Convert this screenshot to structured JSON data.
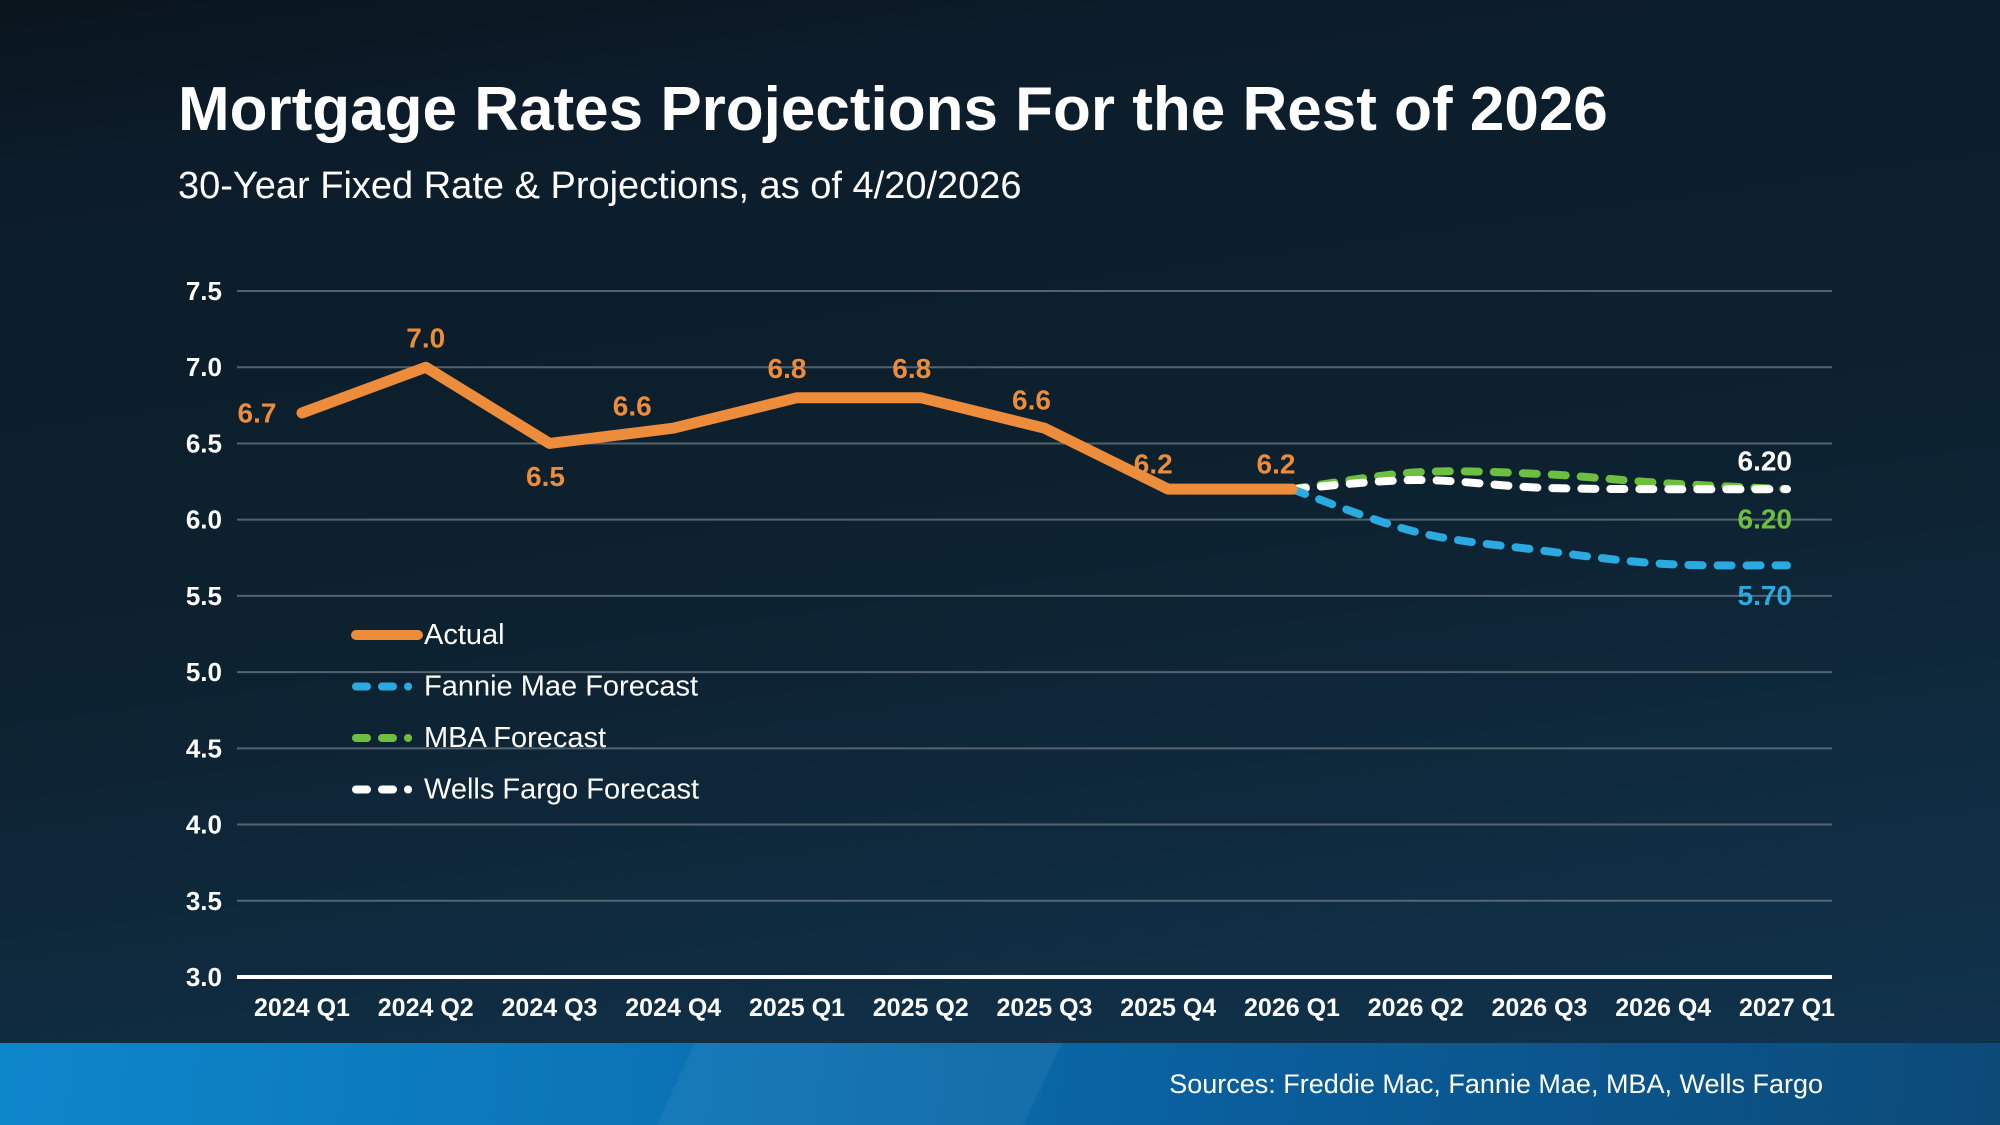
{
  "title": "Mortgage Rates Projections For the Rest of 2026",
  "subtitle": "30-Year Fixed Rate & Projections, as of 4/20/2026",
  "footer": {
    "sources_label": "Sources: Freddie Mac, Fannie Mae, MBA, Wells Fargo"
  },
  "colors": {
    "background_top": "#0a141d",
    "background_bottom": "#123351",
    "footer_bar_left": "#0e86cb",
    "footer_bar_right": "#0c4a78",
    "gridline": "#66737e",
    "axis_line": "#ffffff",
    "actual": "#ed8c3b",
    "fannie_mae": "#2ba9e1",
    "mba": "#6cbf3f",
    "wells_fargo": "#ffffff",
    "text": "#ffffff"
  },
  "chart_data": {
    "type": "line",
    "title": "Mortgage Rates Projections For the Rest of 2026",
    "subtitle": "30-Year Fixed Rate & Projections, as of 4/20/2026",
    "categories": [
      "2024 Q1",
      "2024 Q2",
      "2024 Q3",
      "2024 Q4",
      "2025 Q1",
      "2025 Q2",
      "2025 Q3",
      "2025 Q4",
      "2026 Q1",
      "2026 Q2",
      "2026 Q3",
      "2026 Q4",
      "2027 Q1"
    ],
    "xlabel": "",
    "ylabel": "",
    "ylim": [
      3.0,
      7.5
    ],
    "y_axis": {
      "tick_labels": [
        "7.5",
        "7.0",
        "6.5",
        "6.0",
        "5.5",
        "5.0",
        "4.5",
        "4.0",
        "3.5",
        "3.0"
      ],
      "step": 0.5
    },
    "grid": true,
    "legend_position": "middle-left",
    "series": [
      {
        "id": "actual",
        "name": "Actual",
        "style": "solid",
        "color": "#ed8c3b",
        "values": [
          6.7,
          7.0,
          6.5,
          6.6,
          6.8,
          6.8,
          6.6,
          6.2,
          6.2,
          null,
          null,
          null,
          null
        ],
        "point_labels": [
          "6.7",
          "7.0",
          "6.5",
          "6.6",
          "6.8",
          "6.8",
          "6.6",
          "6.2",
          "6.2"
        ]
      },
      {
        "id": "fannie-mae-forecast",
        "name": "Fannie Mae Forecast",
        "style": "dashed",
        "color": "#2ba9e1",
        "values": [
          null,
          null,
          null,
          null,
          null,
          null,
          null,
          null,
          6.2,
          5.92,
          5.8,
          5.71,
          5.7
        ],
        "end_label": "5.70",
        "end_label_side": "below"
      },
      {
        "id": "mba-forecast",
        "name": "MBA Forecast",
        "style": "dashed",
        "color": "#6cbf3f",
        "values": [
          null,
          null,
          null,
          null,
          null,
          null,
          null,
          null,
          6.2,
          6.31,
          6.3,
          6.24,
          6.2
        ],
        "end_label": "6.20",
        "end_label_side": "below"
      },
      {
        "id": "wells-fargo-forecast",
        "name": "Wells Fargo Forecast",
        "style": "dashed",
        "color": "#ffffff",
        "values": [
          null,
          null,
          null,
          null,
          null,
          null,
          null,
          null,
          6.2,
          6.26,
          6.21,
          6.2,
          6.2
        ],
        "end_label": "6.20",
        "end_label_side": "above"
      }
    ],
    "legend_items": [
      "Actual",
      "Fannie Mae Forecast",
      "MBA Forecast",
      "Wells Fargo Forecast"
    ]
  }
}
